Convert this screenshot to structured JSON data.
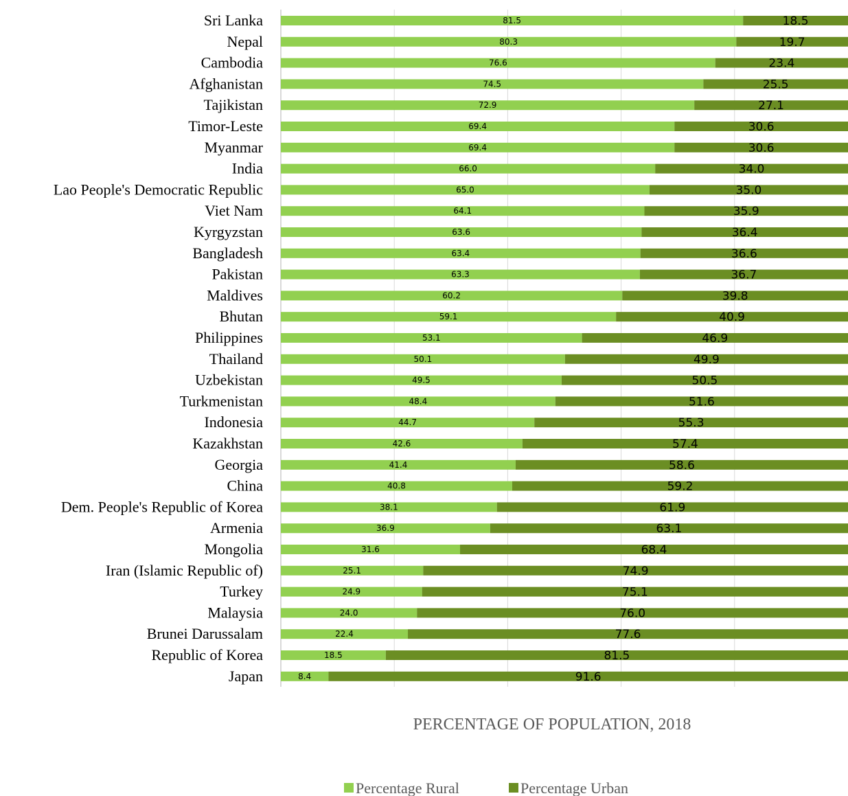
{
  "chart_data": {
    "type": "bar",
    "orientation": "horizontal",
    "stacked": true,
    "categories": [
      "Sri Lanka",
      "Nepal",
      "Cambodia",
      "Afghanistan",
      "Tajikistan",
      "Timor-Leste",
      "Myanmar",
      "India",
      "Lao People's Democratic Republic",
      "Viet Nam",
      "Kyrgyzstan",
      "Bangladesh",
      "Pakistan",
      "Maldives",
      "Bhutan",
      "Philippines",
      "Thailand",
      "Uzbekistan",
      "Turkmenistan",
      "Indonesia",
      "Kazakhstan",
      "Georgia",
      "China",
      "Dem. People's Republic of Korea",
      "Armenia",
      "Mongolia",
      "Iran (Islamic Republic of)",
      "Turkey",
      "Malaysia",
      "Brunei Darussalam",
      "Republic of Korea",
      "Japan"
    ],
    "series": [
      {
        "name": "Percentage Rural",
        "color": "#92d050",
        "values": [
          81.5,
          80.3,
          76.6,
          74.5,
          72.9,
          69.4,
          69.4,
          66.0,
          65.0,
          64.1,
          63.6,
          63.4,
          63.3,
          60.2,
          59.1,
          53.1,
          50.1,
          49.5,
          48.4,
          44.7,
          42.6,
          41.4,
          40.8,
          38.1,
          36.9,
          31.6,
          25.1,
          24.9,
          24.0,
          22.4,
          18.5,
          8.4
        ],
        "labels": [
          "81.5",
          "80.3",
          "76.6",
          "74.5",
          "72.9",
          "69.4",
          "69.4",
          "66.0",
          "65.0",
          "64.1",
          "63.6",
          "63.4",
          "63.3",
          "60.2",
          "59.1",
          "53.1",
          "50.1",
          "49.5",
          "48.4",
          "44.7",
          "42.6",
          "41.4",
          "40.8",
          "38.1",
          "36.9",
          "31.6",
          "25.1",
          "24.9",
          "24.0",
          "22.4",
          "18.5",
          "8.4"
        ]
      },
      {
        "name": "Percentage Urban",
        "color": "#6b8e23",
        "values": [
          18.5,
          19.7,
          23.4,
          25.5,
          27.1,
          30.6,
          30.6,
          34.0,
          35.0,
          35.9,
          36.4,
          36.6,
          36.7,
          39.8,
          40.9,
          46.9,
          49.9,
          50.5,
          51.6,
          55.3,
          57.4,
          58.6,
          59.2,
          61.9,
          63.1,
          68.4,
          74.9,
          75.1,
          76.0,
          77.6,
          81.5,
          91.6
        ],
        "labels": [
          "18.5",
          "19.7",
          "23.4",
          "25.5",
          "27.1",
          "30.6",
          "30.6",
          "34.0",
          "35.0",
          "35.9",
          "36.4",
          "36.6",
          "36.7",
          "39.8",
          "40.9",
          "46.9",
          "49.9",
          "50.5",
          "51.6",
          "55.3",
          "57.4",
          "58.6",
          "59.2",
          "61.9",
          "63.1",
          "68.4",
          "74.9",
          "75.1",
          "76.0",
          "77.6",
          "81.5",
          "91.6"
        ]
      }
    ],
    "xlabel": "PERCENTAGE OF POPULATION, 2018",
    "xlim": [
      0,
      100
    ],
    "grid": true,
    "gridlines_at": [
      20,
      40,
      60,
      80
    ],
    "legend": "bottom-center",
    "axis_color": "#d9d9d9"
  }
}
